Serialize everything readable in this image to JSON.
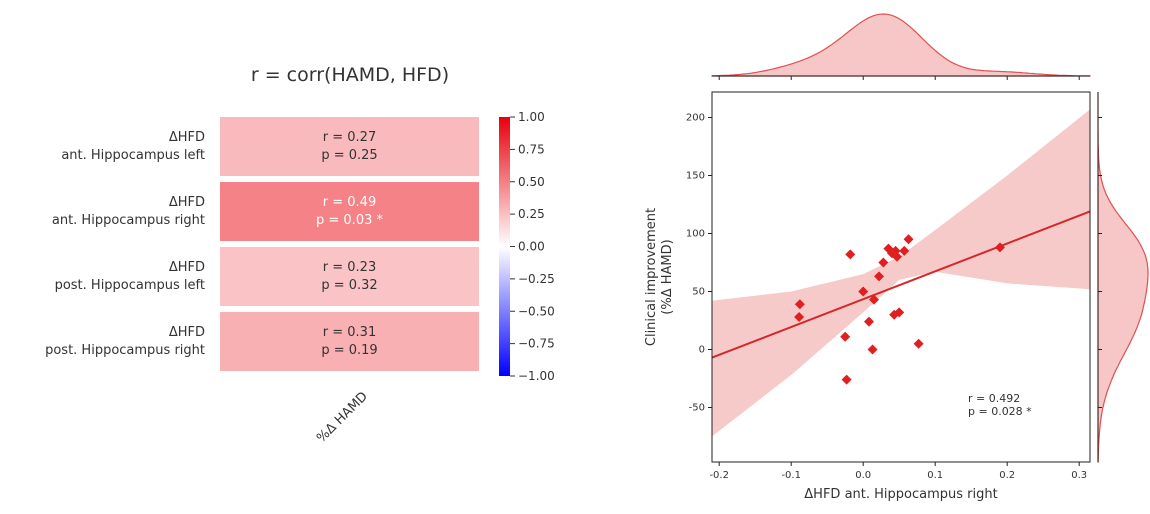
{
  "chart_data": [
    {
      "type": "heatmap",
      "title": "r = corr(HAMD, HFD)",
      "xlabel": "%Δ HAMD",
      "rows": [
        {
          "label_line1": "ΔHFD",
          "label_line2": "ant. Hippocampus left",
          "r_text": "r = 0.27",
          "p_text": "p = 0.25",
          "r": 0.27
        },
        {
          "label_line1": "ΔHFD",
          "label_line2": "ant. Hippocampus right",
          "r_text": "r = 0.49",
          "p_text": "p = 0.03 *",
          "r": 0.49
        },
        {
          "label_line1": "ΔHFD",
          "label_line2": "post. Hippocampus left",
          "r_text": "r = 0.23",
          "p_text": "p = 0.32",
          "r": 0.23
        },
        {
          "label_line1": "ΔHFD",
          "label_line2": "post. Hippocampus right",
          "r_text": "r = 0.31",
          "p_text": "p = 0.19",
          "r": 0.31
        }
      ],
      "colorbar": {
        "min": -1.0,
        "max": 1.0,
        "ticks": [
          "1.00",
          "0.75",
          "0.50",
          "0.25",
          "0.00",
          "−0.25",
          "−0.50",
          "−0.75",
          "−1.00"
        ],
        "colors": {
          "neg": "#0000ff",
          "mid": "#ffffff",
          "pos": "#e8000b"
        }
      }
    },
    {
      "type": "scatter",
      "xlabel": "ΔHFD ant. Hippocampus right",
      "ylabel_line1": "Clinical improvement",
      "ylabel_line2": "(%Δ HAMD)",
      "xlim": [
        -0.21,
        0.315
      ],
      "ylim": [
        -97,
        222
      ],
      "xticks": [
        -0.2,
        -0.1,
        0.0,
        0.1,
        0.2,
        0.3
      ],
      "xtick_labels": [
        "-0.2",
        "-0.1",
        "0.0",
        "0.1",
        "0.2",
        "0.3"
      ],
      "yticks": [
        -50,
        0,
        50,
        100,
        150,
        200
      ],
      "ytick_labels": [
        "-50",
        "0",
        "50",
        "100",
        "150",
        "200"
      ],
      "points": [
        {
          "x": -0.088,
          "y": 39
        },
        {
          "x": -0.089,
          "y": 28
        },
        {
          "x": -0.018,
          "y": 82
        },
        {
          "x": -0.025,
          "y": 11
        },
        {
          "x": -0.023,
          "y": -26
        },
        {
          "x": 0.0,
          "y": 50
        },
        {
          "x": 0.008,
          "y": 24
        },
        {
          "x": 0.015,
          "y": 43
        },
        {
          "x": 0.013,
          "y": 0
        },
        {
          "x": 0.022,
          "y": 63
        },
        {
          "x": 0.028,
          "y": 75
        },
        {
          "x": 0.035,
          "y": 87
        },
        {
          "x": 0.04,
          "y": 83
        },
        {
          "x": 0.045,
          "y": 85
        },
        {
          "x": 0.047,
          "y": 80
        },
        {
          "x": 0.043,
          "y": 30
        },
        {
          "x": 0.05,
          "y": 32
        },
        {
          "x": 0.057,
          "y": 85
        },
        {
          "x": 0.063,
          "y": 95
        },
        {
          "x": 0.077,
          "y": 5
        },
        {
          "x": 0.19,
          "y": 88
        }
      ],
      "regression": {
        "x0": -0.21,
        "y0": -7,
        "x1": 0.315,
        "y1": 119
      },
      "ci_upper": [
        [
          -0.21,
          42
        ],
        [
          -0.1,
          50
        ],
        [
          0.0,
          65
        ],
        [
          0.05,
          80
        ],
        [
          0.1,
          103
        ],
        [
          0.2,
          150
        ],
        [
          0.315,
          207
        ]
      ],
      "ci_lower": [
        [
          -0.21,
          -75
        ],
        [
          -0.1,
          -22
        ],
        [
          0.0,
          32
        ],
        [
          0.05,
          60
        ],
        [
          0.1,
          67
        ],
        [
          0.2,
          57
        ],
        [
          0.315,
          52
        ]
      ],
      "annotation_line1": "r = 0.492",
      "annotation_line2": "p = 0.028 *",
      "colors": {
        "point": "#e02020",
        "line": "#d62728",
        "band": "#f6c1c1",
        "kde_fill": "#f7c6c6",
        "kde_line": "#e05050"
      }
    }
  ]
}
